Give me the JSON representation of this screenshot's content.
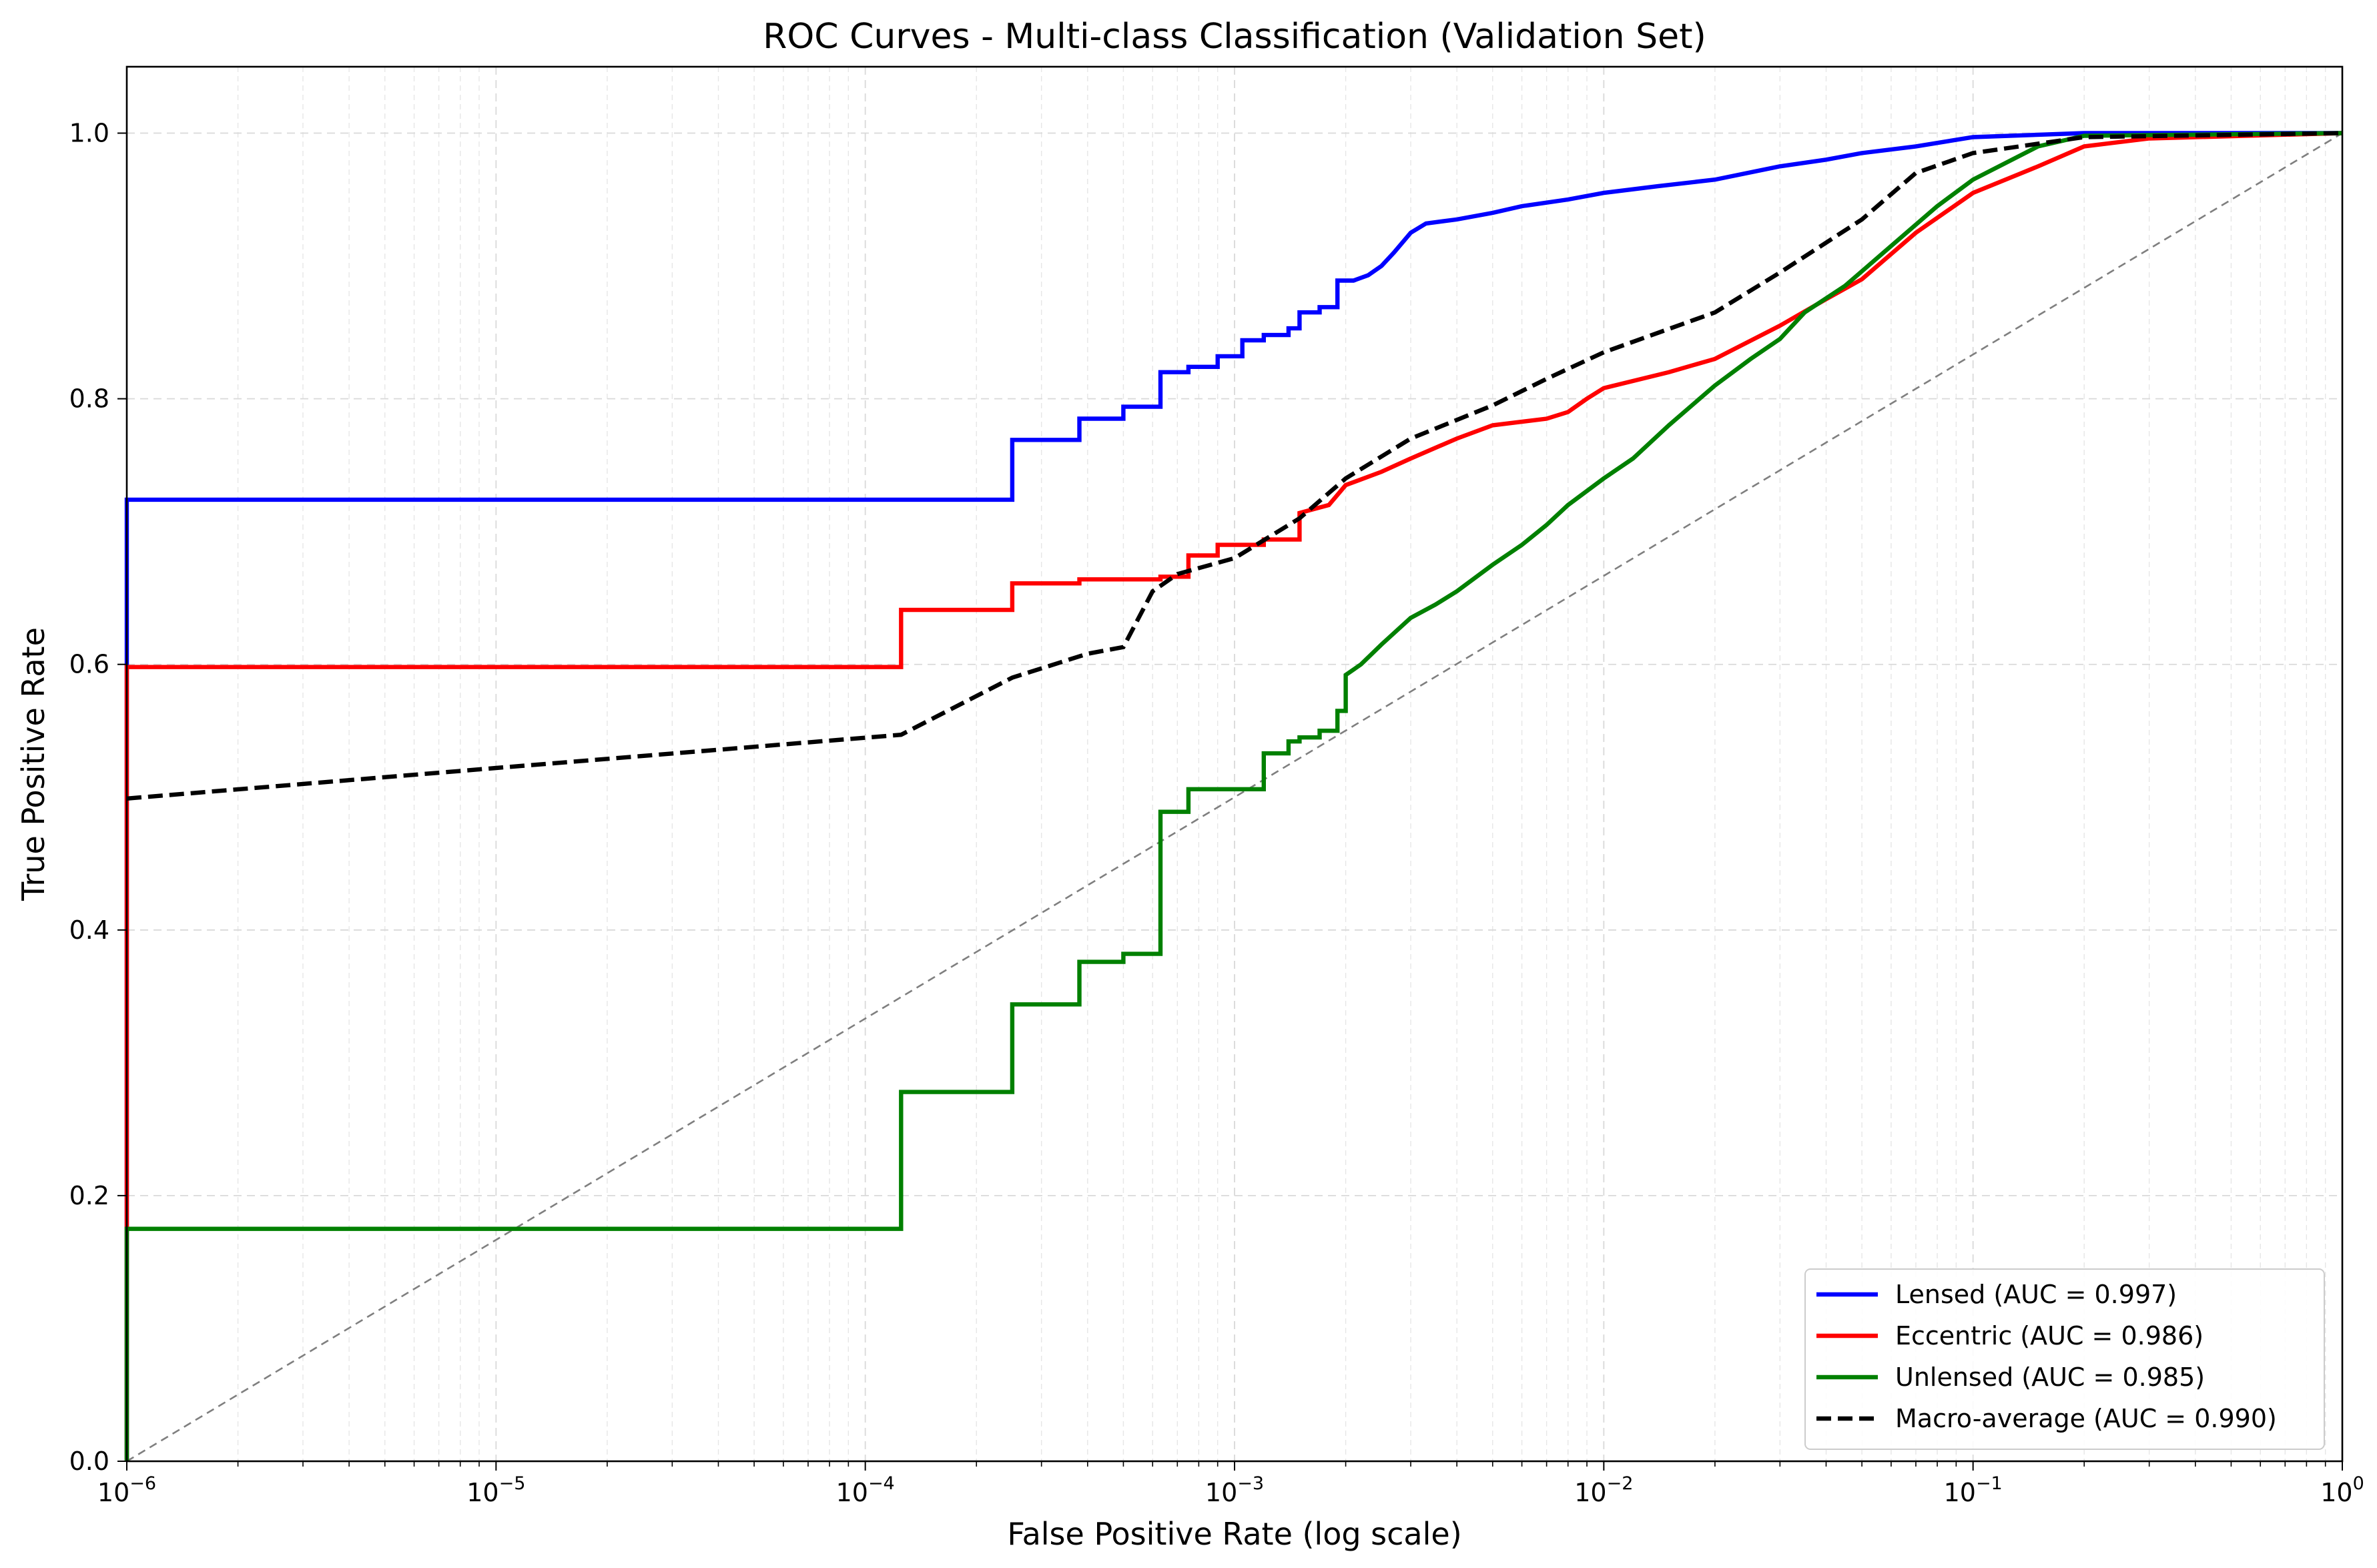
{
  "chart_data": {
    "type": "line",
    "title": "ROC Curves - Multi-class Classification (Validation Set)",
    "xlabel": "False Positive Rate (log scale)",
    "ylabel": "True Positive Rate",
    "xscale": "log",
    "xlim": [
      1e-06,
      1
    ],
    "ylim": [
      0,
      1.05
    ],
    "grid": true,
    "legend_position": "lower-right",
    "x_ticks": [
      {
        "value": 1e-06,
        "base": "10",
        "exp": "−6"
      },
      {
        "value": 1e-05,
        "base": "10",
        "exp": "−5"
      },
      {
        "value": 0.0001,
        "base": "10",
        "exp": "−4"
      },
      {
        "value": 0.001,
        "base": "10",
        "exp": "−3"
      },
      {
        "value": 0.01,
        "base": "10",
        "exp": "−2"
      },
      {
        "value": 0.1,
        "base": "10",
        "exp": "−1"
      },
      {
        "value": 1,
        "base": "10",
        "exp": "0"
      }
    ],
    "y_ticks": [
      {
        "value": 0.0,
        "label": "0.0"
      },
      {
        "value": 0.2,
        "label": "0.2"
      },
      {
        "value": 0.4,
        "label": "0.4"
      },
      {
        "value": 0.6,
        "label": "0.6"
      },
      {
        "value": 0.8,
        "label": "0.8"
      },
      {
        "value": 1.0,
        "label": "1.0"
      }
    ],
    "reference_line": {
      "points": [
        [
          1e-06,
          0
        ],
        [
          1,
          1
        ]
      ],
      "color": "#7f7f7f",
      "style": "dashed"
    },
    "series": [
      {
        "name": "Lensed (AUC = 0.997)",
        "color": "#0000ff",
        "style": "step",
        "points": [
          [
            1e-06,
            0
          ],
          [
            1e-06,
            0.724
          ],
          [
            0.00025,
            0.724
          ],
          [
            0.00025,
            0.769
          ],
          [
            0.00038,
            0.769
          ],
          [
            0.00038,
            0.785
          ],
          [
            0.0005,
            0.785
          ],
          [
            0.0005,
            0.794
          ],
          [
            0.00063,
            0.794
          ],
          [
            0.00063,
            0.82
          ],
          [
            0.00075,
            0.82
          ],
          [
            0.00075,
            0.824
          ],
          [
            0.0009,
            0.824
          ],
          [
            0.0009,
            0.832
          ],
          [
            0.00105,
            0.832
          ],
          [
            0.00105,
            0.844
          ],
          [
            0.0012,
            0.844
          ],
          [
            0.0012,
            0.848
          ],
          [
            0.0014,
            0.848
          ],
          [
            0.0014,
            0.853
          ],
          [
            0.0015,
            0.853
          ],
          [
            0.0015,
            0.865
          ],
          [
            0.0017,
            0.865
          ],
          [
            0.0017,
            0.869
          ],
          [
            0.0019,
            0.869
          ],
          [
            0.0019,
            0.889
          ],
          [
            0.0021,
            0.889
          ],
          [
            0.0023,
            0.893
          ],
          [
            0.0025,
            0.9
          ],
          [
            0.0027,
            0.91
          ],
          [
            0.003,
            0.925
          ],
          [
            0.0033,
            0.932
          ],
          [
            0.004,
            0.935
          ],
          [
            0.005,
            0.94
          ],
          [
            0.006,
            0.945
          ],
          [
            0.008,
            0.95
          ],
          [
            0.01,
            0.955
          ],
          [
            0.014,
            0.96
          ],
          [
            0.02,
            0.965
          ],
          [
            0.03,
            0.975
          ],
          [
            0.04,
            0.98
          ],
          [
            0.05,
            0.985
          ],
          [
            0.07,
            0.99
          ],
          [
            0.1,
            0.997
          ],
          [
            0.2,
            1.0
          ],
          [
            1,
            1.0
          ]
        ]
      },
      {
        "name": "Eccentric (AUC = 0.986)",
        "color": "#ff0000",
        "style": "step",
        "points": [
          [
            1e-06,
            0
          ],
          [
            1e-06,
            0.598
          ],
          [
            0.000125,
            0.598
          ],
          [
            0.000125,
            0.641
          ],
          [
            0.00025,
            0.641
          ],
          [
            0.00025,
            0.661
          ],
          [
            0.00038,
            0.661
          ],
          [
            0.00038,
            0.664
          ],
          [
            0.00063,
            0.664
          ],
          [
            0.00063,
            0.666
          ],
          [
            0.00075,
            0.666
          ],
          [
            0.00075,
            0.682
          ],
          [
            0.0009,
            0.682
          ],
          [
            0.0009,
            0.69
          ],
          [
            0.0012,
            0.69
          ],
          [
            0.0012,
            0.694
          ],
          [
            0.0015,
            0.694
          ],
          [
            0.0015,
            0.714
          ],
          [
            0.0018,
            0.72
          ],
          [
            0.002,
            0.735
          ],
          [
            0.0025,
            0.745
          ],
          [
            0.003,
            0.755
          ],
          [
            0.004,
            0.77
          ],
          [
            0.005,
            0.78
          ],
          [
            0.007,
            0.785
          ],
          [
            0.008,
            0.79
          ],
          [
            0.009,
            0.8
          ],
          [
            0.01,
            0.808
          ],
          [
            0.015,
            0.82
          ],
          [
            0.02,
            0.83
          ],
          [
            0.03,
            0.855
          ],
          [
            0.04,
            0.875
          ],
          [
            0.05,
            0.89
          ],
          [
            0.07,
            0.925
          ],
          [
            0.1,
            0.955
          ],
          [
            0.15,
            0.975
          ],
          [
            0.2,
            0.99
          ],
          [
            0.3,
            0.996
          ],
          [
            1,
            1.0
          ]
        ]
      },
      {
        "name": "Unlensed (AUC = 0.985)",
        "color": "#008000",
        "style": "step",
        "points": [
          [
            1e-06,
            0
          ],
          [
            1e-06,
            0.175
          ],
          [
            0.000125,
            0.175
          ],
          [
            0.000125,
            0.278
          ],
          [
            0.00025,
            0.278
          ],
          [
            0.00025,
            0.344
          ],
          [
            0.00038,
            0.344
          ],
          [
            0.00038,
            0.376
          ],
          [
            0.0005,
            0.376
          ],
          [
            0.0005,
            0.382
          ],
          [
            0.00063,
            0.382
          ],
          [
            0.00063,
            0.489
          ],
          [
            0.00075,
            0.489
          ],
          [
            0.00075,
            0.506
          ],
          [
            0.0012,
            0.506
          ],
          [
            0.0012,
            0.533
          ],
          [
            0.0014,
            0.533
          ],
          [
            0.0014,
            0.542
          ],
          [
            0.0015,
            0.542
          ],
          [
            0.0015,
            0.545
          ],
          [
            0.0017,
            0.545
          ],
          [
            0.0017,
            0.55
          ],
          [
            0.0019,
            0.55
          ],
          [
            0.0019,
            0.565
          ],
          [
            0.002,
            0.565
          ],
          [
            0.002,
            0.592
          ],
          [
            0.0022,
            0.6
          ],
          [
            0.0025,
            0.615
          ],
          [
            0.003,
            0.635
          ],
          [
            0.0035,
            0.645
          ],
          [
            0.004,
            0.655
          ],
          [
            0.005,
            0.675
          ],
          [
            0.006,
            0.69
          ],
          [
            0.007,
            0.705
          ],
          [
            0.008,
            0.72
          ],
          [
            0.01,
            0.74
          ],
          [
            0.012,
            0.755
          ],
          [
            0.015,
            0.78
          ],
          [
            0.02,
            0.81
          ],
          [
            0.025,
            0.83
          ],
          [
            0.03,
            0.845
          ],
          [
            0.035,
            0.865
          ],
          [
            0.045,
            0.885
          ],
          [
            0.06,
            0.915
          ],
          [
            0.08,
            0.945
          ],
          [
            0.1,
            0.965
          ],
          [
            0.15,
            0.99
          ],
          [
            0.2,
            0.998
          ],
          [
            1,
            1.0
          ]
        ]
      },
      {
        "name": "Macro-average (AUC = 0.990)",
        "color": "#000000",
        "style": "dashed",
        "points": [
          [
            1e-06,
            0.499
          ],
          [
            1e-05,
            0.522
          ],
          [
            0.000125,
            0.547
          ],
          [
            0.00025,
            0.59
          ],
          [
            0.0004,
            0.608
          ],
          [
            0.0005,
            0.613
          ],
          [
            0.0006,
            0.655
          ],
          [
            0.0007,
            0.668
          ],
          [
            0.001,
            0.68
          ],
          [
            0.0015,
            0.71
          ],
          [
            0.002,
            0.74
          ],
          [
            0.003,
            0.77
          ],
          [
            0.005,
            0.795
          ],
          [
            0.007,
            0.815
          ],
          [
            0.01,
            0.835
          ],
          [
            0.02,
            0.865
          ],
          [
            0.03,
            0.895
          ],
          [
            0.05,
            0.935
          ],
          [
            0.07,
            0.97
          ],
          [
            0.1,
            0.985
          ],
          [
            0.2,
            0.997
          ],
          [
            1,
            1.0
          ]
        ]
      }
    ]
  }
}
